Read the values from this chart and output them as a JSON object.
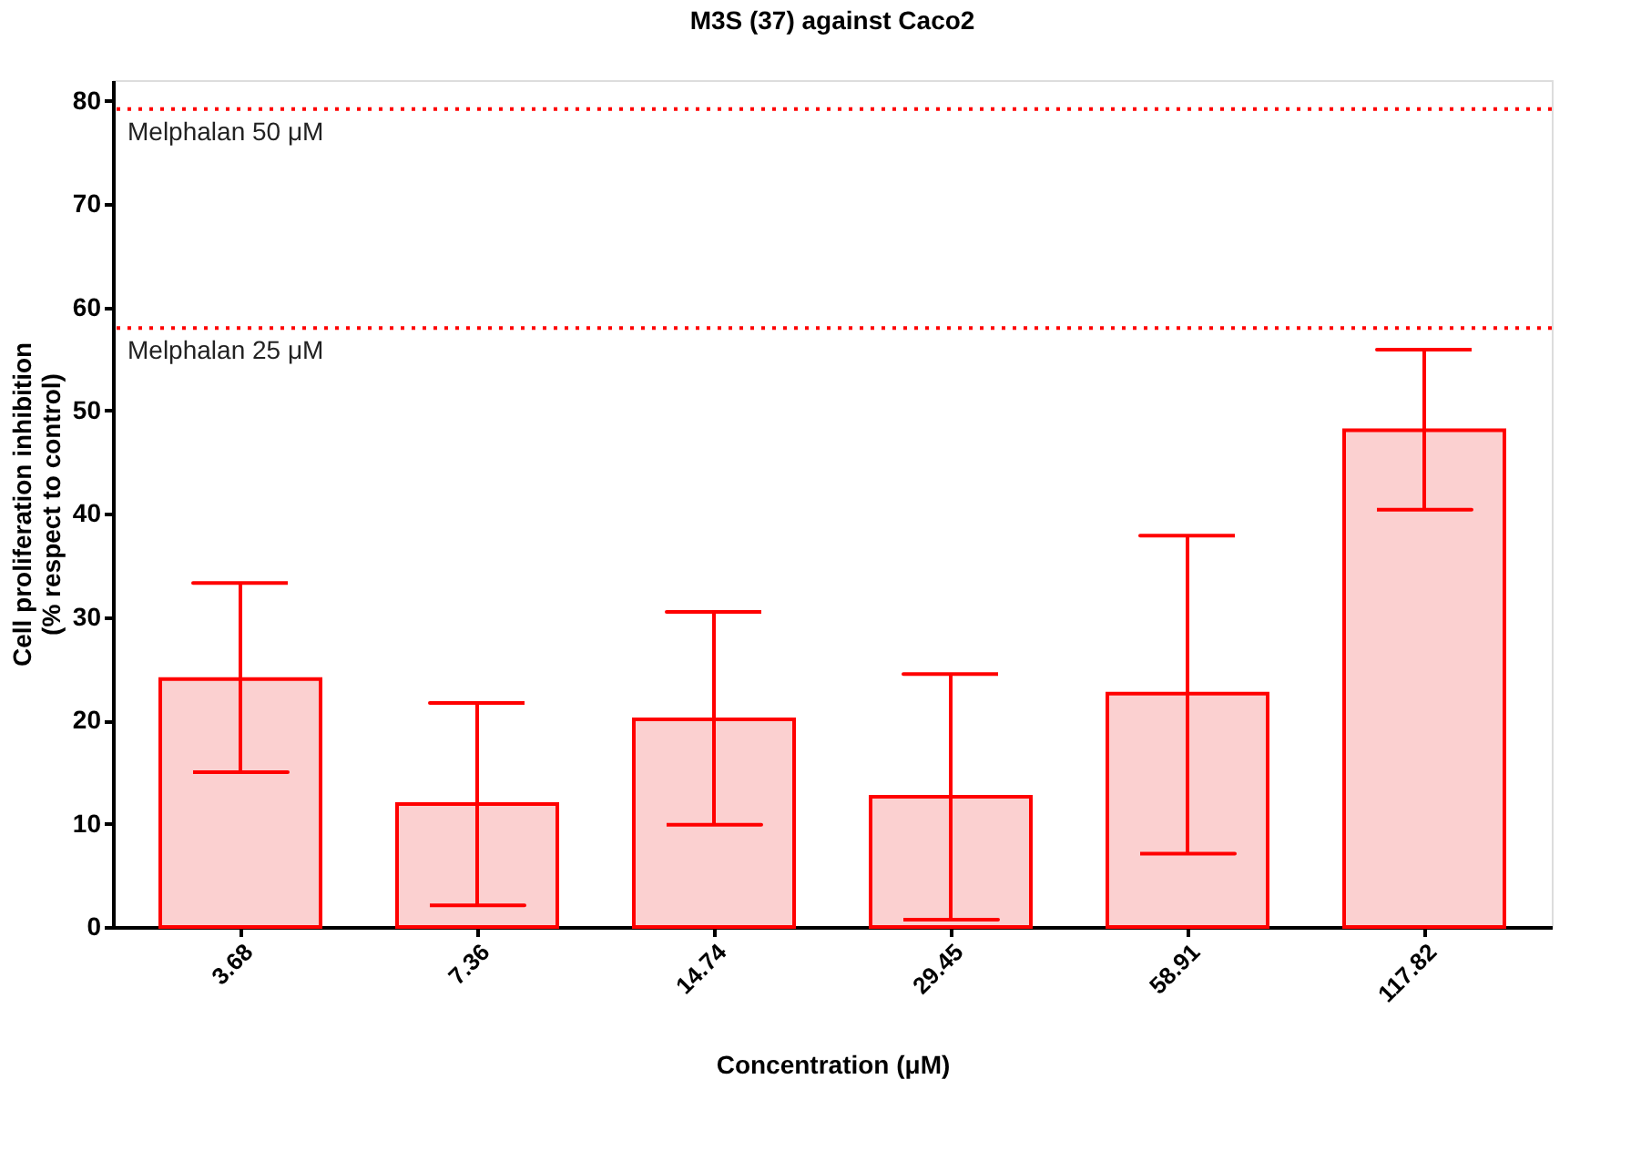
{
  "chart_data": {
    "type": "bar",
    "title": "M3S (37) against Caco2",
    "xlabel": "Concentration (μM)",
    "ylabel": "Cell proliferation inhibition\n(% respect to control)",
    "categories": [
      "3.68",
      "7.36",
      "14.74",
      "29.45",
      "58.91",
      "117.82"
    ],
    "values": [
      24.0,
      11.9,
      20.1,
      12.6,
      22.6,
      48.1
    ],
    "errors": [
      [
        15.0,
        33.3
      ],
      [
        2.1,
        21.7
      ],
      [
        9.9,
        30.5
      ],
      [
        0.7,
        24.5
      ],
      [
        7.1,
        37.9
      ],
      [
        40.4,
        55.9
      ]
    ],
    "color": "#ff0000",
    "ylim": [
      0,
      82
    ],
    "yticks": [
      0,
      10,
      20,
      30,
      40,
      50,
      60,
      70,
      80
    ],
    "ref_lines": [
      {
        "axis": "y",
        "value": 79.2,
        "label": "Melphalan 50 μM",
        "color": "#ff0000",
        "line_style": "dotted"
      },
      {
        "axis": "y",
        "value": 58.0,
        "label": "Melphalan 25 μM",
        "color": "#ff0000",
        "line_style": "dotted"
      }
    ],
    "grid": false
  }
}
